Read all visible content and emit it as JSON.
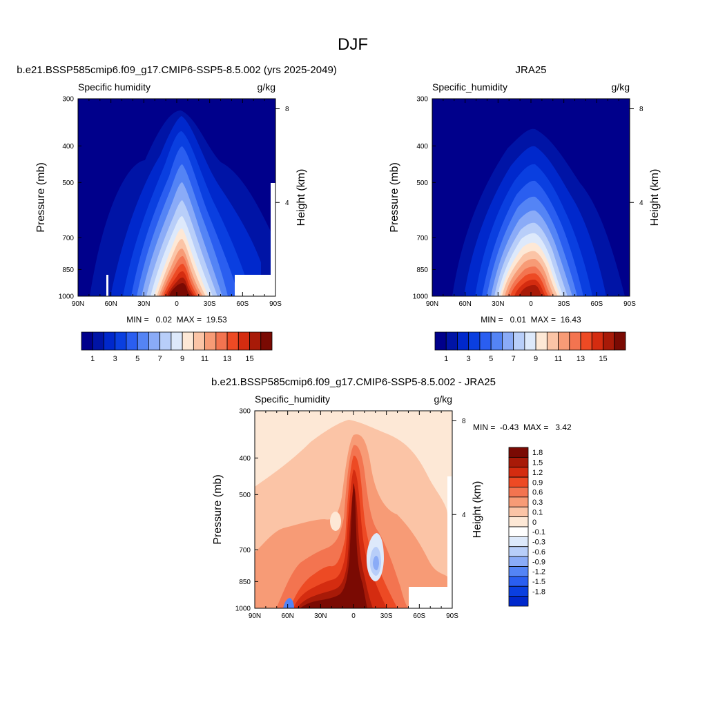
{
  "figure": {
    "title": "DJF"
  },
  "chart_data": [
    {
      "type": "heatmap",
      "subtype": "filled-contour",
      "title": "b.e21.BSSP585cmip6.f09_g17.CMIP6-SSP5-8.5.002 (yrs 2025-2049)",
      "variable": "Specific humidity",
      "units": "g/kg",
      "xlabel": "",
      "ylabel": "Pressure (mb)",
      "ylabel_right": "Height (km)",
      "x_ticks": [
        "90N",
        "60N",
        "30N",
        "0",
        "30S",
        "60S",
        "90S"
      ],
      "x_range": [
        90,
        -90
      ],
      "y_ticks": [
        "300",
        "400",
        "500",
        "700",
        "850",
        "1000"
      ],
      "y_range": [
        1000,
        300
      ],
      "y_scale": "log",
      "height_ticks": [
        "8",
        "4"
      ],
      "stats": "MIN =   0.02  MAX =  19.53",
      "peak_latitude": 0,
      "peak_value": 19.53,
      "colorbar": {
        "orientation": "horizontal",
        "levels": [
          1,
          2,
          3,
          4,
          5,
          6,
          7,
          8,
          9,
          10,
          11,
          12,
          13,
          14,
          15
        ],
        "labels": [
          "1",
          "3",
          "5",
          "7",
          "9",
          "11",
          "13",
          "15"
        ],
        "colors": [
          "#00008b",
          "#0014a6",
          "#0028cc",
          "#0a3fe0",
          "#2a5ef0",
          "#5484f5",
          "#8aabf7",
          "#b8cef9",
          "#dde9fb",
          "#fde8d6",
          "#fbc4a6",
          "#f79b76",
          "#f37450",
          "#ed4a24",
          "#d42c10",
          "#a81a08",
          "#7a0a03"
        ]
      }
    },
    {
      "type": "heatmap",
      "subtype": "filled-contour",
      "title": "JRA25",
      "variable": "Specific_humidity",
      "units": "g/kg",
      "xlabel": "",
      "ylabel": "Pressure (mb)",
      "ylabel_right": "Height (km)",
      "x_ticks": [
        "90N",
        "60N",
        "30N",
        "0",
        "30S",
        "60S",
        "90S"
      ],
      "x_range": [
        90,
        -90
      ],
      "y_ticks": [
        "300",
        "400",
        "500",
        "700",
        "850",
        "1000"
      ],
      "y_range": [
        1000,
        300
      ],
      "y_scale": "log",
      "height_ticks": [
        "8",
        "4"
      ],
      "stats": "MIN =   0.01  MAX =  16.43",
      "peak_latitude": 0,
      "peak_value": 16.43,
      "colorbar": {
        "orientation": "horizontal",
        "levels": [
          1,
          2,
          3,
          4,
          5,
          6,
          7,
          8,
          9,
          10,
          11,
          12,
          13,
          14,
          15
        ],
        "labels": [
          "1",
          "3",
          "5",
          "7",
          "9",
          "11",
          "13",
          "15"
        ],
        "colors": [
          "#00008b",
          "#0014a6",
          "#0028cc",
          "#0a3fe0",
          "#2a5ef0",
          "#5484f5",
          "#8aabf7",
          "#b8cef9",
          "#dde9fb",
          "#fde8d6",
          "#fbc4a6",
          "#f79b76",
          "#f37450",
          "#ed4a24",
          "#d42c10",
          "#a81a08",
          "#7a0a03"
        ]
      }
    },
    {
      "type": "heatmap",
      "subtype": "filled-contour",
      "title": "b.e21.BSSP585cmip6.f09_g17.CMIP6-SSP5-8.5.002 - JRA25",
      "variable": "Specific_humidity",
      "units": "g/kg",
      "xlabel": "",
      "ylabel": "Pressure (mb)",
      "ylabel_right": "Height (km)",
      "x_ticks": [
        "90N",
        "60N",
        "30N",
        "0",
        "30S",
        "60S",
        "90S"
      ],
      "x_range": [
        90,
        -90
      ],
      "y_ticks": [
        "300",
        "400",
        "500",
        "700",
        "850",
        "1000"
      ],
      "y_range": [
        1000,
        300
      ],
      "y_scale": "log",
      "height_ticks": [
        "8",
        "4"
      ],
      "stats": "MIN =  -0.43  MAX =   3.42",
      "colorbar": {
        "orientation": "vertical",
        "levels": [
          -1.8,
          -1.5,
          -1.2,
          -0.9,
          -0.6,
          -0.3,
          -0.1,
          0,
          0.1,
          0.3,
          0.6,
          0.9,
          1.2,
          1.5,
          1.8
        ],
        "labels": [
          "1.8",
          "1.5",
          "1.2",
          "0.9",
          "0.6",
          "0.3",
          "0.1",
          "0",
          "-0.1",
          "-0.3",
          "-0.6",
          "-0.9",
          "-1.2",
          "-1.5",
          "-1.8"
        ],
        "colors_top_to_bottom": [
          "#7a0a03",
          "#a81a08",
          "#d42c10",
          "#ed4a24",
          "#f37450",
          "#f79b76",
          "#fbc4a6",
          "#fde8d6",
          "#ffffff",
          "#dde9fb",
          "#b8cef9",
          "#8aabf7",
          "#5484f5",
          "#2a5ef0",
          "#0a3fe0",
          "#0028cc"
        ]
      }
    }
  ]
}
